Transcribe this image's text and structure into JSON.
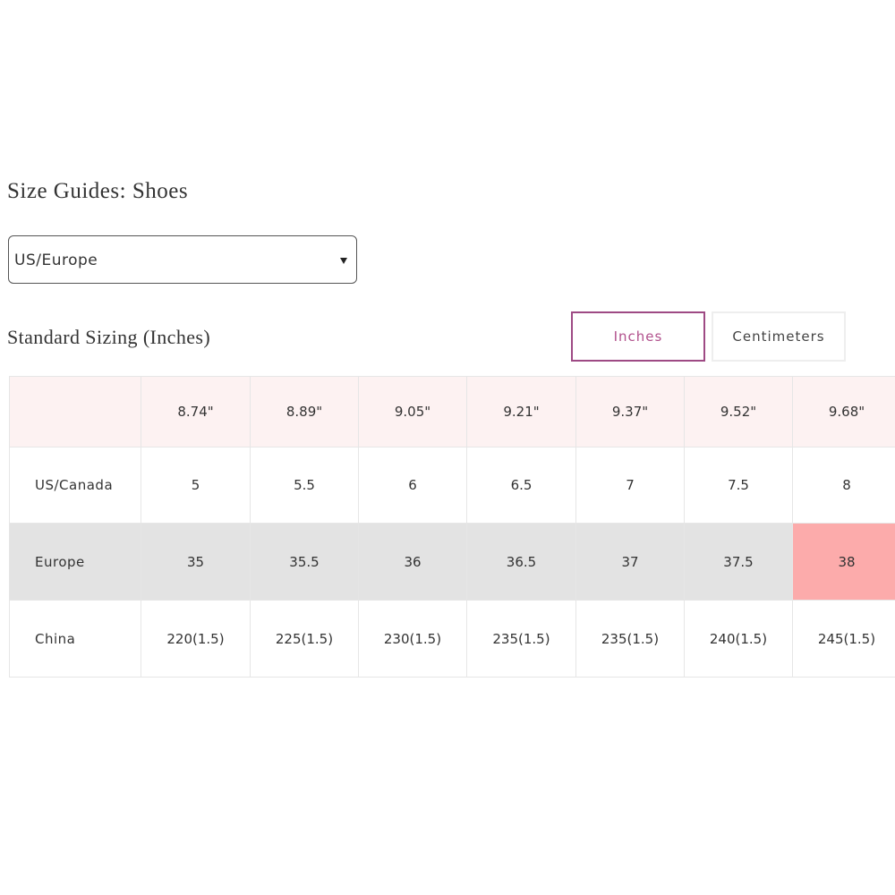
{
  "title": "Size Guides: Shoes",
  "select": {
    "value": "US/Europe"
  },
  "subtitle": "Standard Sizing (Inches)",
  "tabs": [
    "Inches",
    "Centimeters"
  ],
  "table": {
    "columns": [
      "8.74\"",
      "8.89\"",
      "9.05\"",
      "9.21\"",
      "9.37\"",
      "9.52\"",
      "9.68\""
    ],
    "rows": [
      {
        "label": "US/Canada",
        "cells": [
          "5",
          "5.5",
          "6",
          "6.5",
          "7",
          "7.5",
          "8"
        ]
      },
      {
        "label": "Europe",
        "cells": [
          "35",
          "35.5",
          "36",
          "36.5",
          "37",
          "37.5",
          "38"
        ]
      },
      {
        "label": "China",
        "cells": [
          "220(1.5)",
          "225(1.5)",
          "230(1.5)",
          "235(1.5)",
          "235(1.5)",
          "240(1.5)",
          "245(1.5)"
        ]
      }
    ]
  }
}
